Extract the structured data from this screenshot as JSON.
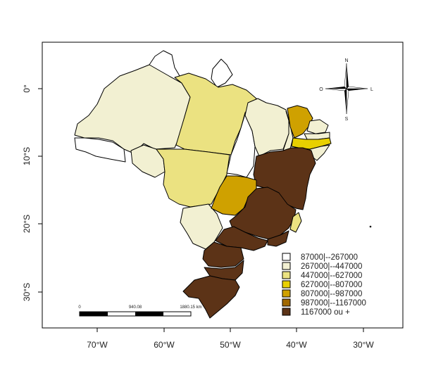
{
  "map": {
    "x_ticks": [
      "70°W",
      "60°W",
      "50°W",
      "40°W",
      "30°W"
    ],
    "y_ticks": [
      "0°",
      "10°S",
      "20°S",
      "30°S"
    ],
    "legend": [
      {
        "label": "87000|--267000",
        "color": "#ffffff"
      },
      {
        "label": "267000|--447000",
        "color": "#f2f0d2"
      },
      {
        "label": "447000|--627000",
        "color": "#ebe281"
      },
      {
        "label": "627000|--807000",
        "color": "#e8d000"
      },
      {
        "label": "807000|--987000",
        "color": "#cfa100"
      },
      {
        "label": "987000|--1167000",
        "color": "#a06800"
      },
      {
        "label": "1167000 ou +",
        "color": "#5c3317"
      }
    ],
    "scale_bar": {
      "start": "0",
      "mid": "940.08",
      "end": "1880.15 km"
    },
    "compass": {
      "n": "N",
      "s": "S",
      "e": "L",
      "w": "O"
    },
    "colors": {
      "class1": "#ffffff",
      "class2": "#f2f0d2",
      "class3": "#ebe281",
      "class4": "#e8d000",
      "class5": "#cfa100",
      "class7": "#5c3317"
    }
  }
}
